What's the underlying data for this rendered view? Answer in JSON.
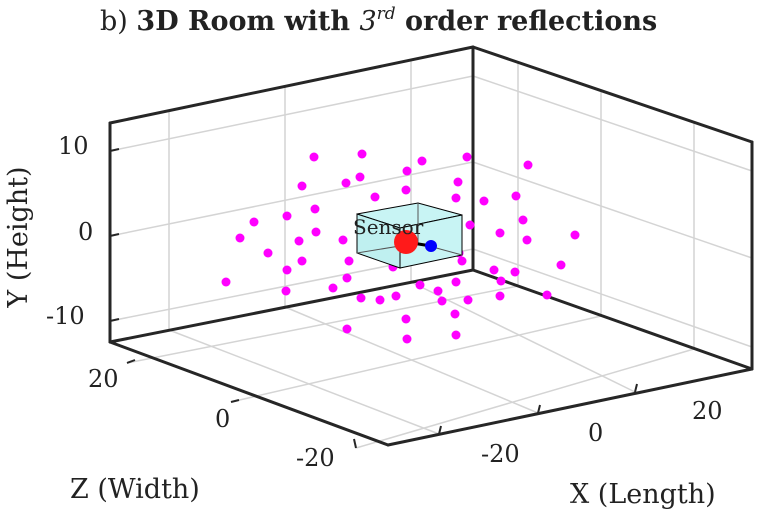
{
  "chart_data": {
    "type": "scatter",
    "projection": "3d",
    "title": {
      "prefix": "b) ",
      "main": "3D Room with ",
      "order_base": "3",
      "order_sup": "rd",
      "suffix": " order reflections"
    },
    "xlabel": "X (Length)",
    "ylabel": "Y (Height)",
    "zlabel": "Z (Width)",
    "y_ticks": [
      "10",
      "0",
      "-10"
    ],
    "z_ticks": [
      "20",
      "0",
      "-20"
    ],
    "x_ticks": [
      "-20",
      "0",
      "20"
    ],
    "grid": true,
    "box": true,
    "colors": {
      "reflections": "#ff00ff",
      "source": "#ff1a1a",
      "sensor": "#0000ff",
      "room_fill": "#c8f4f4",
      "room_edge": "#000000"
    },
    "annotations": [
      {
        "text": "Sensor"
      }
    ],
    "series": [
      {
        "kind": "image-sources",
        "count": 62
      },
      {
        "kind": "source"
      },
      {
        "kind": "sensor"
      },
      {
        "kind": "room"
      }
    ]
  }
}
